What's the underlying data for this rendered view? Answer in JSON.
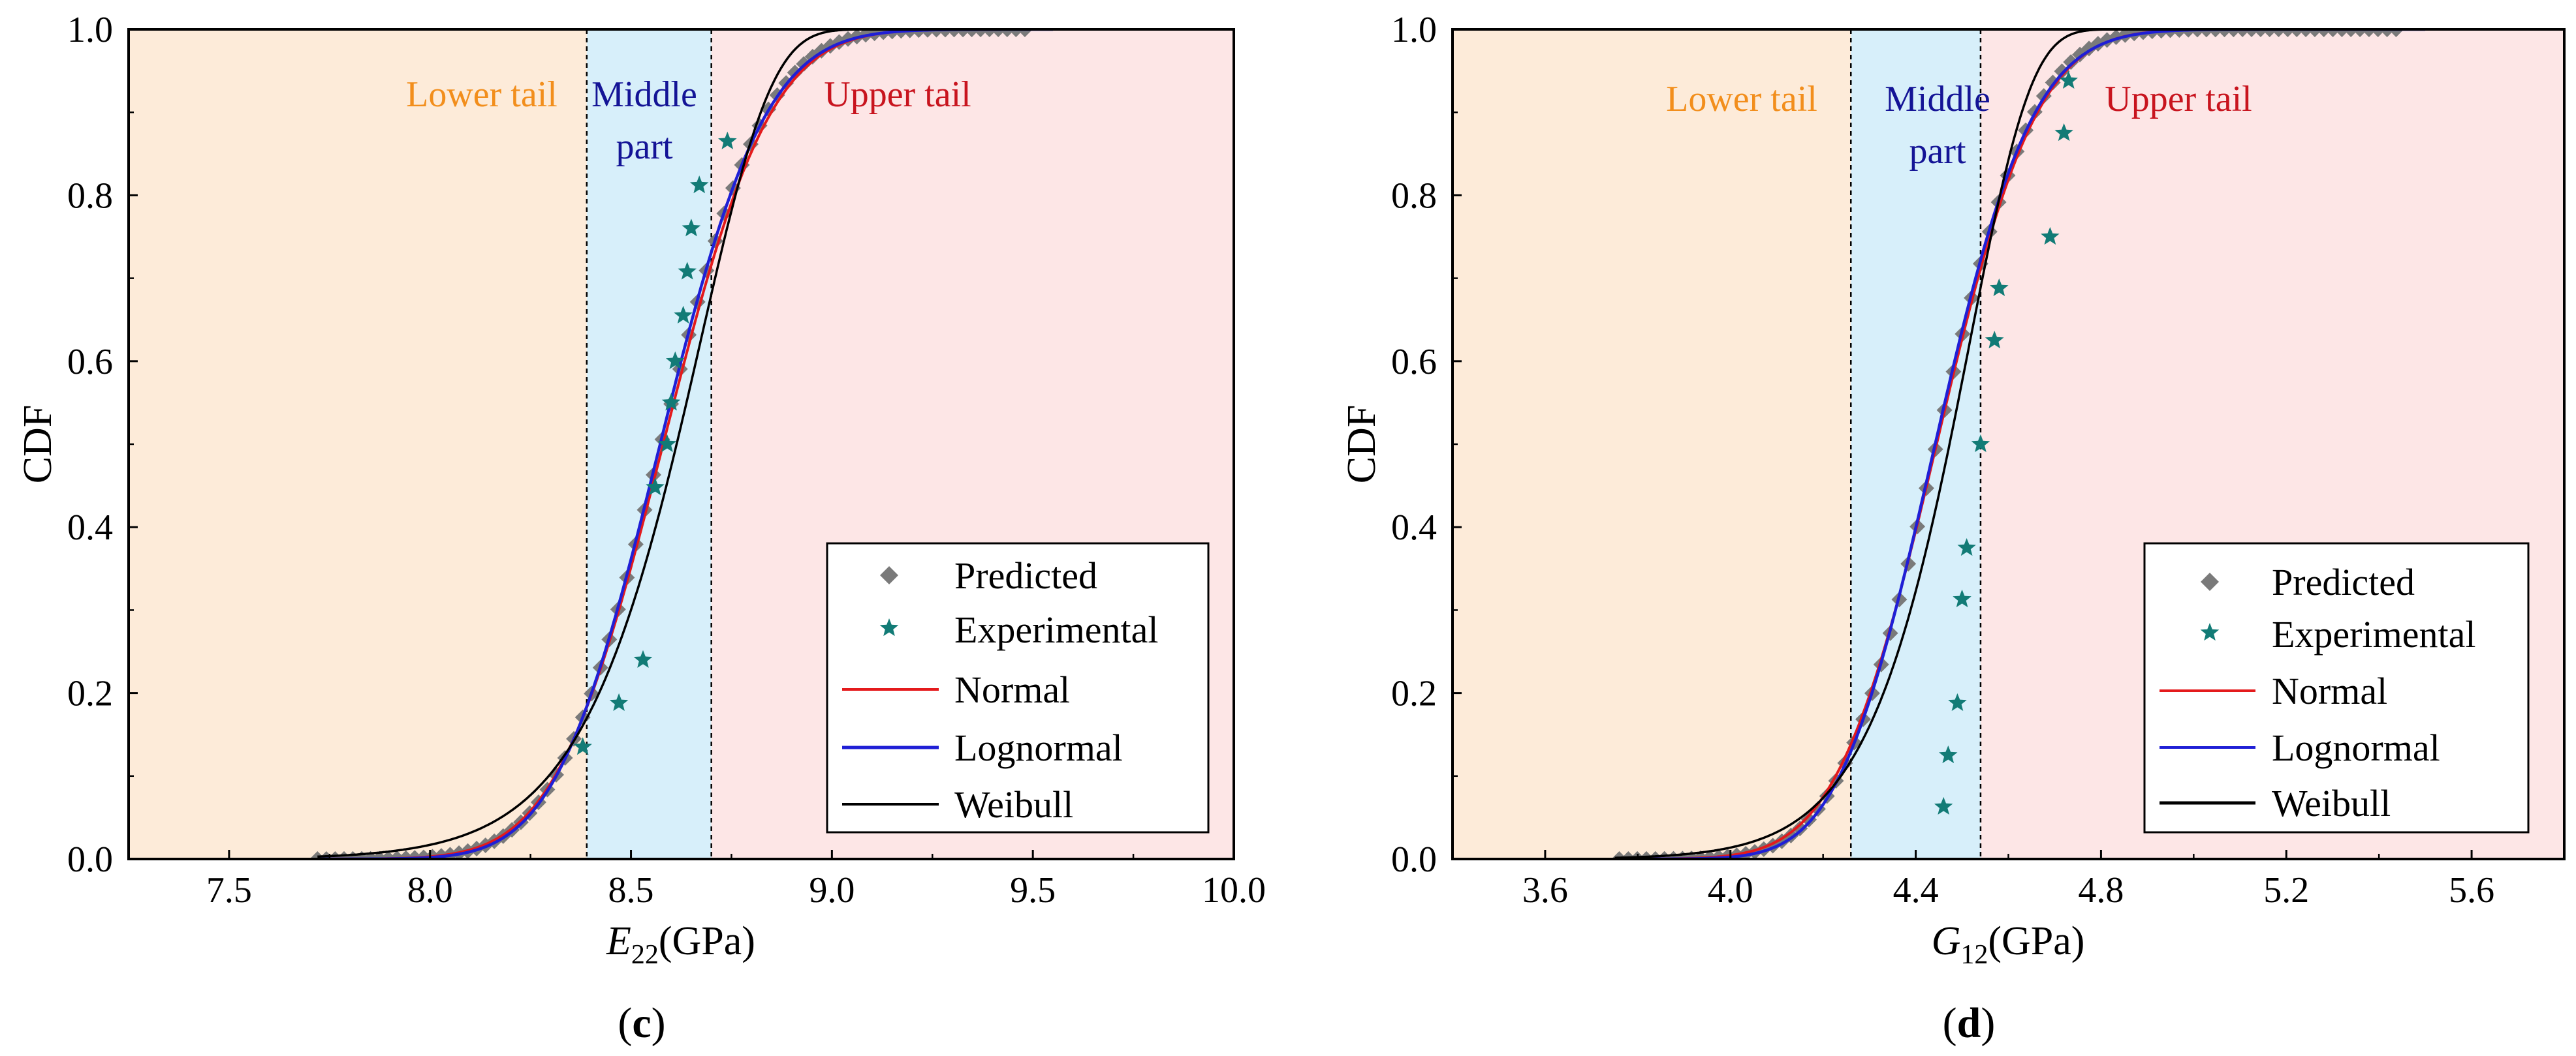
{
  "figure": {
    "colors": {
      "lower_region": "#fdebd9",
      "middle_region": "#d7effa",
      "upper_region": "#fde6e6",
      "lower_label": "#f28e1c",
      "middle_label": "#141496",
      "upper_label": "#c8141e",
      "predicted": "#7a7a7a",
      "experimental": "#127b76",
      "normal": "#e41a1c",
      "lognormal": "#1f1fd6",
      "weibull": "#000000"
    }
  },
  "chart_data": [
    {
      "type": "line",
      "panel_label": "c",
      "ylabel": "CDF",
      "xlabel_symbol": "E",
      "xlabel_subscript": "22",
      "xlabel_unit": "(GPa)",
      "xlim": [
        7.25,
        10.0
      ],
      "ylim": [
        0.0,
        1.0
      ],
      "xticks": [
        "7.5",
        "8.0",
        "8.5",
        "9.0",
        "9.5",
        "10.0"
      ],
      "xtick_values": [
        7.5,
        8.0,
        8.5,
        9.0,
        9.5,
        10.0
      ],
      "yticks": [
        "0.0",
        "0.2",
        "0.4",
        "0.6",
        "0.8",
        "1.0"
      ],
      "ytick_values": [
        0.0,
        0.2,
        0.4,
        0.6,
        0.8,
        1.0
      ],
      "regions": [
        {
          "name": "Lower tail",
          "from": 7.25,
          "to": 8.39
        },
        {
          "name": "Middle part",
          "from": 8.39,
          "to": 8.7
        },
        {
          "name": "Upper tail",
          "from": 8.7,
          "to": 10.0
        }
      ],
      "region_labels": {
        "lower": [
          "Lower tail"
        ],
        "middle": [
          "Middle",
          "part"
        ],
        "upper": [
          "Upper tail"
        ]
      },
      "legend": {
        "position": "bottom-right",
        "entries": [
          "Predicted",
          "Experimental",
          "Normal",
          "Lognormal",
          "Weibull"
        ]
      },
      "predicted": {
        "mean": 8.575,
        "sd": 0.205,
        "x_min": 7.72,
        "x_max": 9.5,
        "step": 0.022
      },
      "normal": {
        "mean": 8.58,
        "sd": 0.21
      },
      "lognormal": {
        "mean": 8.575,
        "sd": 0.205
      },
      "weibull": {
        "scale": 8.677,
        "shape": 50.0
      },
      "curve_x_range": [
        7.72,
        9.55
      ],
      "experimental": {
        "x": [
          8.38,
          8.47,
          8.53,
          8.56,
          8.59,
          8.6,
          8.61,
          8.63,
          8.64,
          8.65,
          8.67,
          8.74
        ],
        "y": [
          0.135,
          0.188,
          0.24,
          0.448,
          0.5,
          0.55,
          0.6,
          0.655,
          0.708,
          0.76,
          0.812,
          0.865
        ]
      }
    },
    {
      "type": "line",
      "panel_label": "d",
      "ylabel": "CDF",
      "xlabel_symbol": "G",
      "xlabel_subscript": "12",
      "xlabel_unit": "(GPa)",
      "xlim": [
        3.4,
        5.8
      ],
      "ylim": [
        0.0,
        1.0
      ],
      "xticks": [
        "3.6",
        "4.0",
        "4.4",
        "4.8",
        "5.2",
        "5.6"
      ],
      "xtick_values": [
        3.6,
        4.0,
        4.4,
        4.8,
        5.2,
        5.6
      ],
      "yticks": [
        "0.0",
        "0.2",
        "0.4",
        "0.6",
        "0.8",
        "1.0"
      ],
      "ytick_values": [
        0.0,
        0.2,
        0.4,
        0.6,
        0.8,
        1.0
      ],
      "regions": [
        {
          "name": "Lower tail",
          "from": 3.4,
          "to": 4.26
        },
        {
          "name": "Middle part",
          "from": 4.26,
          "to": 4.54
        },
        {
          "name": "Upper tail",
          "from": 4.54,
          "to": 5.8
        }
      ],
      "region_labels": {
        "lower": [
          "Lower tail"
        ],
        "middle": [
          "Middle",
          "part"
        ],
        "upper": [
          "Upper tail"
        ]
      },
      "legend": {
        "position": "bottom-right",
        "entries": [
          "Predicted",
          "Experimental",
          "Normal",
          "Lognormal",
          "Weibull"
        ]
      },
      "predicted": {
        "mean": 4.445,
        "sd": 0.165,
        "x_min": 3.76,
        "x_max": 5.45,
        "step": 0.0195
      },
      "normal": {
        "mean": 4.445,
        "sd": 0.17
      },
      "lognormal": {
        "mean": 4.445,
        "sd": 0.165
      },
      "weibull": {
        "scale": 4.52,
        "shape": 35.0
      },
      "curve_x_range": [
        3.75,
        5.5
      ],
      "experimental": {
        "x": [
          4.46,
          4.47,
          4.49,
          4.5,
          4.51,
          4.54,
          4.57,
          4.58,
          4.69,
          4.72,
          4.73
        ],
        "y": [
          0.063,
          0.125,
          0.188,
          0.313,
          0.375,
          0.5,
          0.625,
          0.688,
          0.75,
          0.875,
          0.938
        ]
      }
    }
  ]
}
